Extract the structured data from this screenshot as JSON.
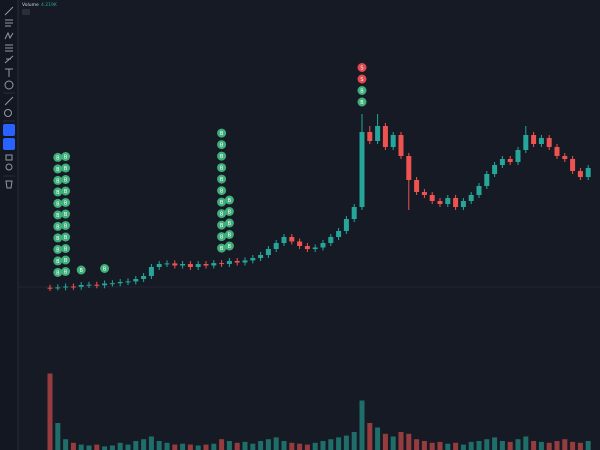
{
  "chart_data": {
    "type": "candlestick",
    "legend_title": "Volume",
    "legend_value": "4.219K",
    "open": [
      4.1,
      4,
      4.2,
      4.5,
      4.4,
      5,
      5.1,
      4.9,
      5.5,
      5.6,
      6,
      6.2,
      7,
      8,
      11,
      12,
      12.2,
      11.5,
      12,
      11,
      12,
      11.5,
      12.3,
      12,
      13,
      12.5,
      13.2,
      14,
      15,
      17,
      19,
      21,
      19.5,
      18,
      17,
      17.5,
      19,
      21,
      23,
      27,
      31,
      56,
      53,
      58,
      51,
      55,
      48,
      40,
      36,
      35,
      33,
      32,
      34,
      31,
      33,
      35,
      38,
      42,
      45,
      47,
      46,
      50,
      55,
      52,
      54,
      51,
      48,
      47,
      43,
      41
    ],
    "high": [
      5.1,
      5.2,
      5.5,
      5.5,
      6,
      6.1,
      6.1,
      6.5,
      6.6,
      7,
      7.2,
      8,
      9,
      12,
      13,
      13.2,
      13.2,
      13,
      13,
      13,
      13,
      13.3,
      13.3,
      14,
      14,
      14.2,
      15,
      16,
      18,
      20,
      22,
      22,
      20.5,
      19,
      18.5,
      20,
      22,
      24,
      28,
      32,
      62,
      58,
      62,
      59,
      56,
      56,
      49,
      41,
      37,
      36,
      34,
      35,
      35,
      34,
      36,
      39,
      43,
      46,
      48,
      48,
      51,
      58,
      56,
      55,
      55,
      52,
      49,
      48,
      44,
      45
    ],
    "low": [
      3,
      3.2,
      3.2,
      3.4,
      3.4,
      4,
      3.9,
      3.9,
      4.5,
      4.6,
      5,
      5.2,
      6,
      7,
      10,
      11,
      10.5,
      10.5,
      10,
      10,
      10.5,
      10.5,
      11,
      11,
      11.5,
      11.5,
      12.2,
      13,
      14,
      16,
      18,
      18.5,
      17,
      16,
      16,
      16.5,
      18,
      20,
      22,
      26,
      30,
      52,
      52,
      50,
      50,
      47,
      30,
      35,
      34,
      32,
      31,
      31,
      30,
      30,
      32,
      34,
      37,
      41,
      44,
      45,
      45,
      49,
      51,
      51,
      50,
      47,
      46,
      42,
      40,
      40
    ],
    "close": [
      4,
      4.2,
      4.5,
      4.4,
      5,
      5.1,
      4.9,
      5.5,
      5.6,
      6,
      6.2,
      7,
      8,
      11,
      12,
      12.2,
      11.5,
      12,
      11,
      12,
      11.5,
      12.3,
      12,
      13,
      12.5,
      13.2,
      14,
      15,
      17,
      19,
      21,
      19.5,
      18,
      17,
      17.5,
      19,
      21,
      23,
      27,
      31,
      56,
      53,
      58,
      51,
      55,
      48,
      40,
      36,
      35,
      33,
      32,
      34,
      31,
      33,
      35,
      38,
      42,
      45,
      47,
      46,
      50,
      55,
      52,
      54,
      51,
      48,
      47,
      43,
      41,
      44
    ],
    "volume": [
      85,
      30,
      12,
      8,
      6,
      5,
      6,
      4,
      5,
      8,
      6,
      10,
      12,
      15,
      10,
      8,
      6,
      7,
      6,
      5,
      6,
      7,
      12,
      10,
      8,
      9,
      7,
      10,
      12,
      14,
      10,
      8,
      7,
      6,
      8,
      10,
      12,
      14,
      16,
      20,
      55,
      30,
      25,
      18,
      15,
      20,
      18,
      12,
      10,
      8,
      9,
      7,
      8,
      6,
      9,
      10,
      12,
      14,
      10,
      9,
      12,
      15,
      10,
      9,
      8,
      10,
      12,
      9,
      8,
      10
    ],
    "ylim": [
      0,
      100
    ],
    "volume_ylim": [
      0,
      100
    ],
    "up_color": "#26a69a",
    "down_color": "#ef5350",
    "marker_colors": {
      "B": "#3fae7a",
      "S": "#e0494d"
    },
    "markers": [
      {
        "candle": 1,
        "labels": [
          "B",
          "B",
          "B",
          "B",
          "B",
          "B",
          "B",
          "B",
          "B",
          "B",
          "B"
        ]
      },
      {
        "candle": 2,
        "labels": [
          "B",
          "B",
          "B",
          "B",
          "B",
          "B",
          "B",
          "B",
          "B",
          "B",
          "B"
        ]
      },
      {
        "candle": 4,
        "labels": [
          "B"
        ]
      },
      {
        "candle": 7,
        "labels": [
          "B"
        ]
      },
      {
        "candle": 22,
        "labels": [
          "B",
          "B",
          "B",
          "B",
          "B",
          "B",
          "B",
          "B",
          "B",
          "B",
          "B"
        ]
      },
      {
        "candle": 23,
        "labels": [
          "B",
          "B",
          "B",
          "B",
          "B"
        ]
      },
      {
        "candle": 40,
        "labels": [
          "B",
          "B",
          "S",
          "S"
        ]
      }
    ]
  }
}
